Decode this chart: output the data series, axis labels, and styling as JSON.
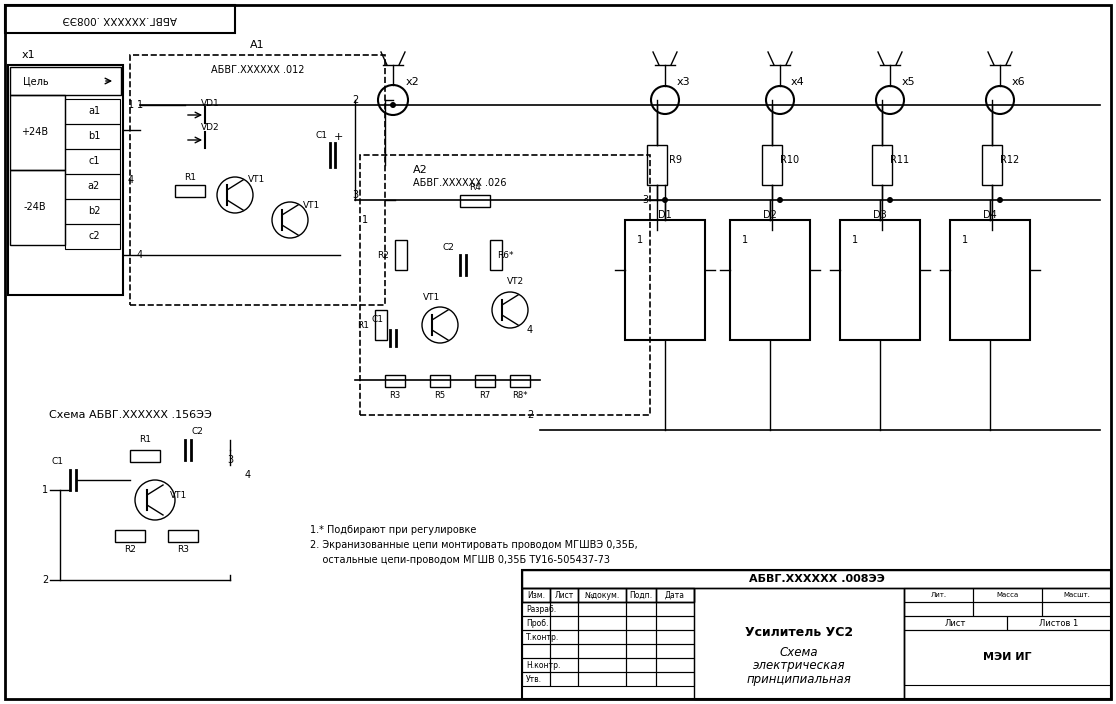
{
  "bg_color": "#ffffff",
  "line_color": "#000000",
  "title_block": {
    "doc_number": "АБВГ.XXXXXX .008ЭЭ",
    "title_line1": "Усилитель УС2",
    "title_line2": "Схема",
    "title_line3": "электрическая",
    "title_line4": "принципиальная",
    "sheet_label": "Лист",
    "sheets_label": "Листов 1",
    "org_label": "МЭИ ИГ",
    "rows": [
      "Изм.",
      "Лист",
      "№докум.",
      "Подп.",
      "Дата",
      "Разраб.",
      "Проб.",
      "Т.контр.",
      "",
      "Н.контр.",
      "Утв."
    ]
  },
  "top_stamp": "АБВГ.XXXXXX .008ЭЭ",
  "top_stamp_mirrored": true,
  "notes": [
    "1.* Подбирают при регулировке",
    "2. Экранизованные цепи монтировать проводом МГШВЭ 0,35Б,",
    "    остальные цепи-проводом МГШВ 0,35Б ТУ16-505437-73"
  ],
  "block_A1_label": "А1",
  "block_A1_sub": "АБВГ.XXXXXX .012",
  "block_A2_label": "А2",
  "block_A2_sub": "АБВГ.XXXXXX .026",
  "schema_label": "Схема АБВГ.XXXXXX .156ЭЭ",
  "connectors": [
    "x1",
    "x2",
    "x3",
    "x4",
    "x5",
    "x6"
  ],
  "components_A1": [
    "VD1",
    "VD2",
    "VT1",
    "R1",
    "C1"
  ],
  "components_A2": [
    "R1",
    "R2",
    "R3",
    "R4",
    "R5",
    "R6*",
    "R7",
    "R8*",
    "C1",
    "C2",
    "VT1",
    "VT2"
  ],
  "components_main": [
    "R9",
    "R10",
    "R11",
    "R12",
    "D1",
    "D2",
    "D3",
    "D4"
  ],
  "components_sub": [
    "R1",
    "R2",
    "R3",
    "C1",
    "C2",
    "VT1"
  ],
  "lam_labels": [
    "Лит.",
    "Масса",
    "Масшт."
  ]
}
